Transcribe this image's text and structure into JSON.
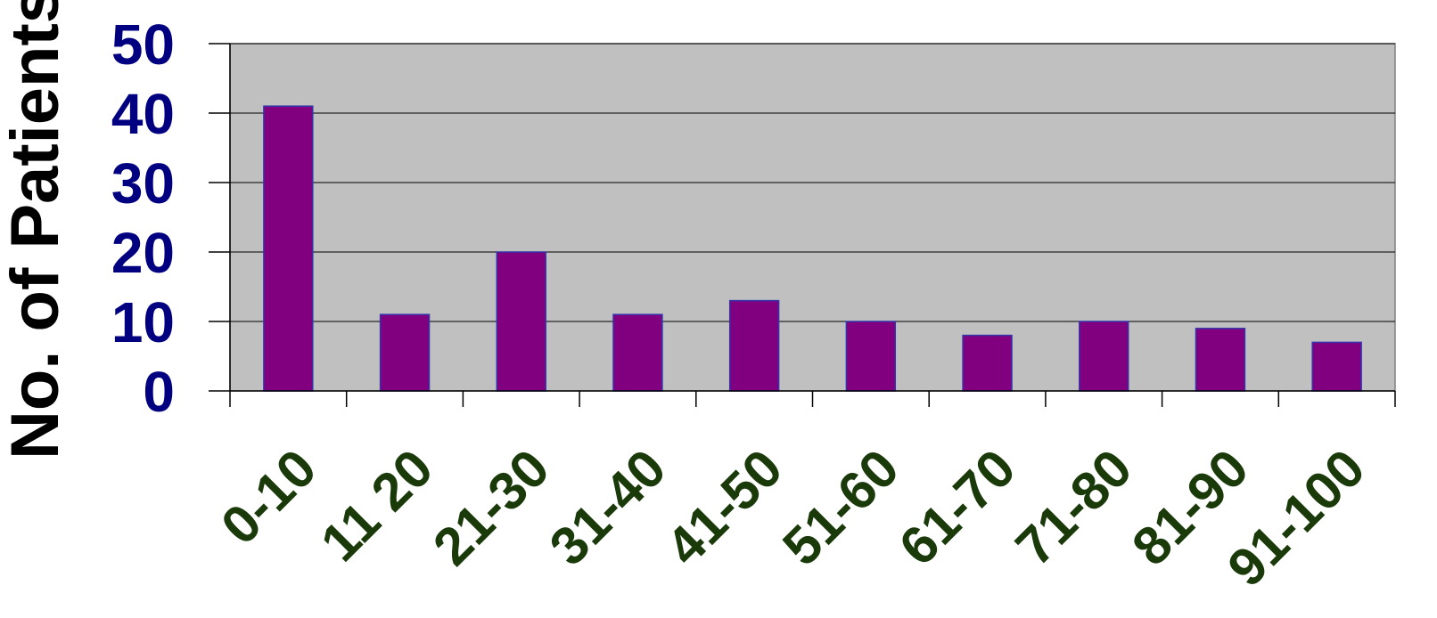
{
  "chart_data": {
    "type": "bar",
    "title": "",
    "xlabel": "",
    "ylabel": "No. of Patients",
    "categories": [
      "0-10",
      "11 20",
      "21-30",
      "31-40",
      "41-50",
      "51-60",
      "61-70",
      "71-80",
      "81-90",
      "91-100"
    ],
    "values": [
      41,
      11,
      20,
      11,
      13,
      10,
      8,
      10,
      9,
      7
    ],
    "ylim": [
      0,
      50
    ],
    "yticks": [
      0,
      10,
      20,
      30,
      40,
      50
    ],
    "grid": true,
    "legend": "none",
    "colors": {
      "bar_fill": "#800080",
      "bar_stroke": "#3333aa",
      "plot_background": "#c0c0c0",
      "y_tick_label": "#000080",
      "x_tick_label": "#1a3a0a",
      "ylabel": "#000000",
      "grid": "#000000"
    }
  }
}
